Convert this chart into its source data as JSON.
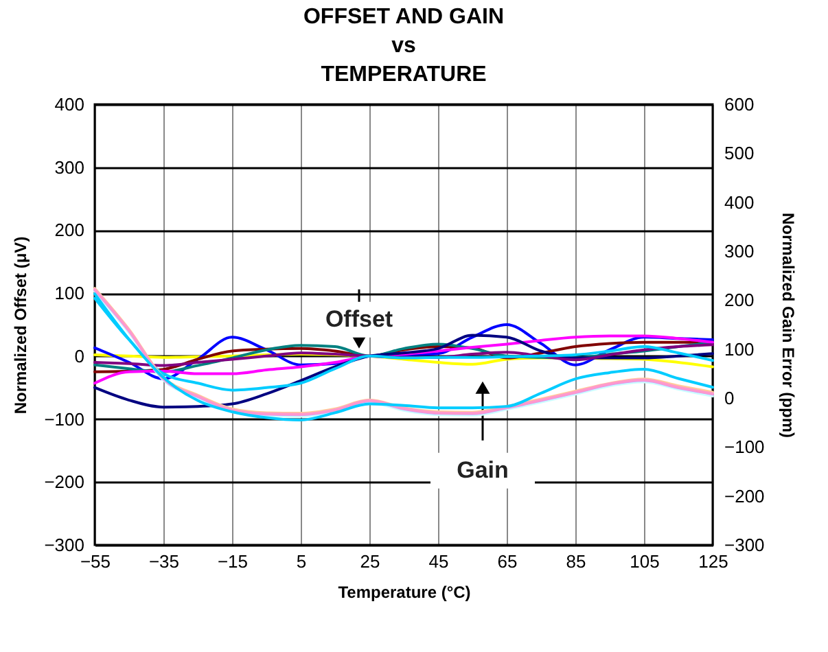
{
  "chart_data": {
    "type": "line",
    "title": "OFFSET AND GAIN\nvs\nTEMPERATURE",
    "xlabel": "Temperature (°C)",
    "ylabel": "Normalized Offset (μV)",
    "y2label": "Normalized Gain Error (ppm)",
    "x": [
      -55,
      -45,
      -35,
      -25,
      -15,
      -5,
      5,
      15,
      25,
      35,
      45,
      55,
      65,
      75,
      85,
      95,
      105,
      115,
      125
    ],
    "series": [
      {
        "color": "#ffff00",
        "values": [
          2,
          0,
          -2,
          -1,
          0,
          2,
          3,
          2,
          0,
          -5,
          -10,
          -13,
          -5,
          -3,
          -3,
          -4,
          -5,
          -10,
          -17
        ]
      },
      {
        "color": "#0000ff",
        "values": [
          13,
          -10,
          -36,
          -5,
          30,
          10,
          -14,
          -12,
          0,
          2,
          4,
          30,
          50,
          20,
          -14,
          10,
          30,
          28,
          26
        ]
      },
      {
        "color": "#800000",
        "values": [
          -25,
          -24,
          -21,
          -5,
          8,
          11,
          12,
          8,
          0,
          10,
          15,
          13,
          -3,
          5,
          15,
          20,
          22,
          22,
          22
        ]
      },
      {
        "color": "#008080",
        "values": [
          -14,
          -20,
          -25,
          -15,
          -3,
          10,
          17,
          15,
          0,
          12,
          19,
          12,
          0,
          -2,
          -3,
          3,
          8,
          15,
          22
        ]
      },
      {
        "color": "#ff00ff",
        "values": [
          -43,
          -25,
          -24,
          -28,
          -28,
          -22,
          -17,
          -10,
          0,
          3,
          8,
          14,
          19,
          25,
          30,
          32,
          32,
          28,
          22
        ]
      },
      {
        "color": "#000080",
        "values": [
          -50,
          -70,
          -81,
          -80,
          -76,
          -60,
          -39,
          -17,
          0,
          5,
          12,
          33,
          30,
          8,
          -3,
          -3,
          -3,
          0,
          4
        ]
      },
      {
        "color": "#800080",
        "values": [
          -10,
          -12,
          -15,
          -10,
          -5,
          0,
          5,
          3,
          0,
          -2,
          -2,
          3,
          6,
          0,
          -6,
          2,
          10,
          15,
          18
        ]
      },
      {
        "color": "#00ccff",
        "values": [
          92,
          26,
          -28,
          -43,
          -54,
          -50,
          -43,
          -20,
          0,
          -3,
          -2,
          -2,
          -1,
          0,
          2,
          8,
          15,
          5,
          -7
        ]
      },
      {
        "color": "#ffcc99",
        "axis": "y2",
        "values": [
          224,
          140,
          42,
          6,
          -22,
          -30,
          -31,
          -22,
          -4,
          -20,
          -28,
          -29,
          -17,
          -2,
          14,
          30,
          39,
          25,
          12
        ]
      },
      {
        "color": "#ccffff",
        "axis": "y2",
        "values": [
          218,
          134,
          37,
          0,
          -28,
          -36,
          -37,
          -28,
          -9,
          -25,
          -34,
          -35,
          -23,
          -8,
          8,
          25,
          33,
          18,
          4
        ]
      },
      {
        "color": "#cc99ff",
        "axis": "y2",
        "values": [
          221,
          137,
          39,
          3,
          -25,
          -33,
          -34,
          -25,
          -6,
          -22,
          -31,
          -32,
          -20,
          -5,
          11,
          28,
          36,
          21,
          8
        ]
      },
      {
        "color": "#ff99cc",
        "axis": "y2",
        "values": [
          222,
          138,
          40,
          4,
          -24,
          -32,
          -33,
          -24,
          -5,
          -21,
          -30,
          -31,
          -19,
          -4,
          12,
          29,
          37,
          22,
          9
        ]
      },
      {
        "color": "#00ccff",
        "axis": "y2",
        "values": [
          213,
          120,
          42,
          -5,
          -28,
          -40,
          -45,
          -30,
          -12,
          -15,
          -20,
          -20,
          -17,
          10,
          39,
          52,
          59,
          40,
          22
        ]
      }
    ],
    "xlim": [
      -55,
      125
    ],
    "xticks": [
      -55,
      -35,
      -15,
      5,
      25,
      45,
      65,
      85,
      105,
      125
    ],
    "ylim": [
      -300,
      400
    ],
    "yticks": [
      -300,
      -200,
      -100,
      0,
      100,
      200,
      300,
      400
    ],
    "y2lim": [
      -300,
      600
    ],
    "y2ticks": [
      -300,
      -200,
      -100,
      0,
      100,
      200,
      300,
      400,
      500,
      600
    ],
    "grid": true,
    "line_style": "solid",
    "annotations": [
      {
        "text": "Offset",
        "x": 22,
        "y": 22
      },
      {
        "text": "Gain",
        "x": 58,
        "y": -50
      }
    ]
  }
}
